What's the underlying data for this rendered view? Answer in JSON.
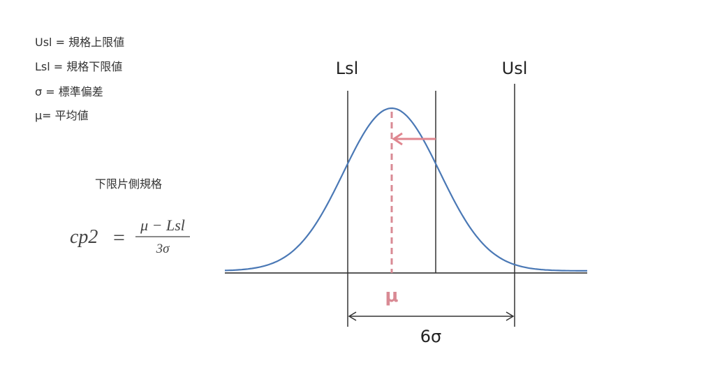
{
  "legend": [
    "Usl = 規格上限値",
    "Lsl = 規格下限値",
    "σ = 標準偏差",
    "μ= 平均値"
  ],
  "section_title": "下限片側規格",
  "formula": {
    "lhs": "cp2",
    "equals": "=",
    "numerator": "μ − Lsl",
    "denominator": "3σ"
  },
  "diagram": {
    "lower_limit_label": "Lsl",
    "upper_limit_label": "Usl",
    "mean_label": "μ",
    "width_label": "6σ"
  }
}
